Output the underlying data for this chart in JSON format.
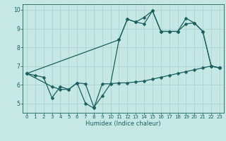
{
  "xlabel": "Humidex (Indice chaleur)",
  "bg_color": "#c5e8e5",
  "line_color": "#1a6060",
  "grid_color": "#a8d0cc",
  "xlim": [
    -0.5,
    23.5
  ],
  "ylim": [
    4.5,
    10.3
  ],
  "xticks": [
    0,
    1,
    2,
    3,
    4,
    5,
    6,
    7,
    8,
    9,
    10,
    11,
    12,
    13,
    14,
    15,
    16,
    17,
    18,
    19,
    20,
    21,
    22,
    23
  ],
  "yticks": [
    5,
    6,
    7,
    8,
    9,
    10
  ],
  "line1_x": [
    0,
    1,
    2,
    3,
    4,
    5,
    6,
    7,
    8,
    9,
    10,
    11,
    12,
    13,
    14,
    15,
    16,
    17,
    18,
    19,
    20,
    21,
    22,
    23
  ],
  "line1_y": [
    6.6,
    6.5,
    6.4,
    5.3,
    5.9,
    5.75,
    6.1,
    6.05,
    4.8,
    5.4,
    6.05,
    6.1,
    6.1,
    6.15,
    6.2,
    6.3,
    6.4,
    6.5,
    6.6,
    6.7,
    6.8,
    6.9,
    7.0,
    6.9
  ],
  "line2_x": [
    0,
    3,
    4,
    5,
    6,
    7,
    8,
    9,
    10,
    11,
    12,
    13,
    14,
    15,
    16,
    17,
    18,
    19,
    20,
    21,
    22,
    23
  ],
  "line2_y": [
    6.6,
    5.9,
    5.75,
    5.75,
    6.1,
    5.0,
    4.75,
    6.05,
    6.05,
    8.4,
    9.5,
    9.35,
    9.25,
    9.95,
    8.85,
    8.85,
    8.85,
    9.25,
    9.3,
    8.85,
    7.0,
    6.9
  ],
  "line3_x": [
    0,
    11,
    12,
    13,
    14,
    15,
    16,
    17,
    18,
    19,
    20,
    21,
    22,
    23
  ],
  "line3_y": [
    6.6,
    8.4,
    9.5,
    9.35,
    9.6,
    9.95,
    8.85,
    8.85,
    8.85,
    9.55,
    9.3,
    8.85,
    7.0,
    6.9
  ],
  "markersize": 2.5,
  "linewidth": 0.9,
  "tick_fontsize": 5.0,
  "xlabel_fontsize": 6.0
}
